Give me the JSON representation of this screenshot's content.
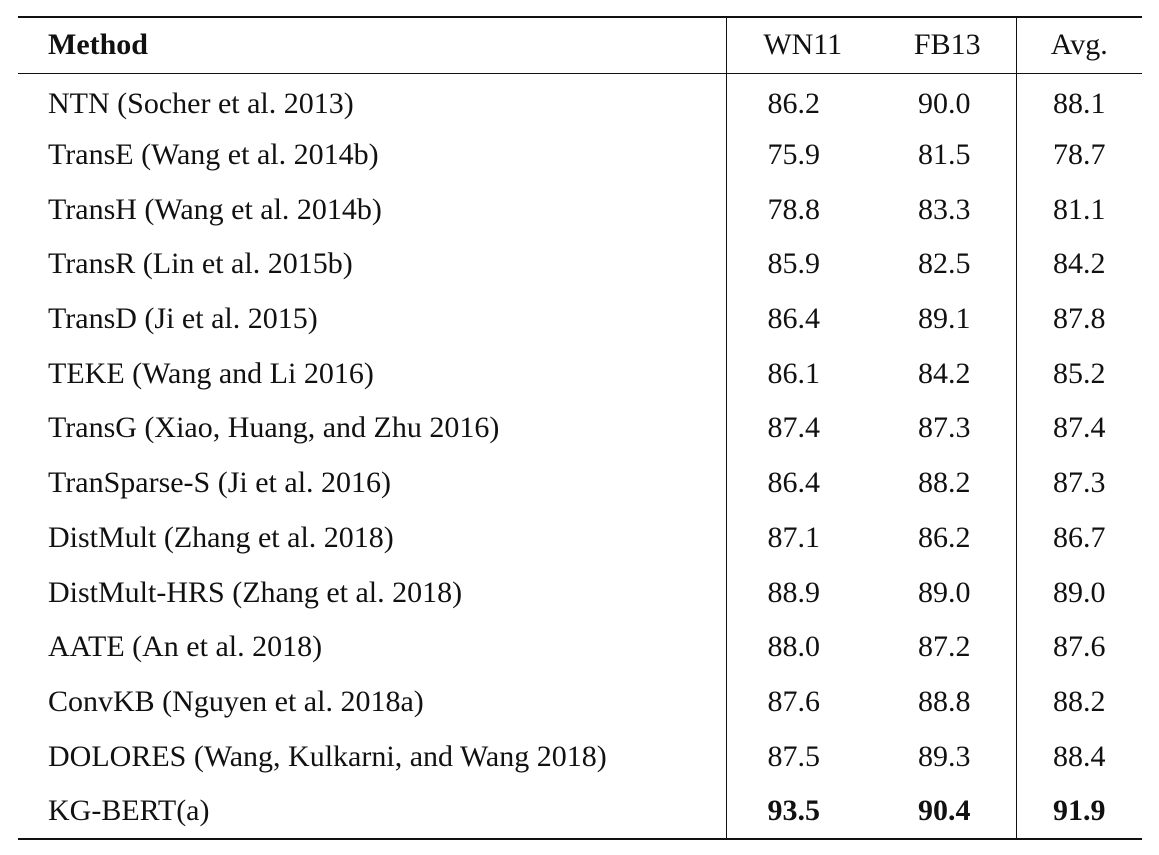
{
  "table": {
    "headers": {
      "method": "Method",
      "wn11": "WN11",
      "fb13": "FB13",
      "avg": "Avg."
    },
    "rows": [
      {
        "method": "NTN (Socher et al. 2013)",
        "wn11": "86.2",
        "fb13": "90.0",
        "avg": "88.1"
      },
      {
        "method": "TransE (Wang et al. 2014b)",
        "wn11": "75.9",
        "fb13": "81.5",
        "avg": "78.7"
      },
      {
        "method": "TransH (Wang et al. 2014b)",
        "wn11": "78.8",
        "fb13": "83.3",
        "avg": "81.1"
      },
      {
        "method": "TransR (Lin et al. 2015b)",
        "wn11": "85.9",
        "fb13": "82.5",
        "avg": "84.2"
      },
      {
        "method": "TransD (Ji et al. 2015)",
        "wn11": "86.4",
        "fb13": "89.1",
        "avg": "87.8"
      },
      {
        "method": "TEKE (Wang and Li 2016)",
        "wn11": "86.1",
        "fb13": "84.2",
        "avg": "85.2"
      },
      {
        "method": "TransG (Xiao, Huang, and Zhu 2016)",
        "wn11": "87.4",
        "fb13": "87.3",
        "avg": "87.4"
      },
      {
        "method": "TranSparse-S (Ji et al. 2016)",
        "wn11": "86.4",
        "fb13": "88.2",
        "avg": "87.3"
      },
      {
        "method": "DistMult (Zhang et al. 2018)",
        "wn11": "87.1",
        "fb13": "86.2",
        "avg": "86.7"
      },
      {
        "method": "DistMult-HRS (Zhang et al. 2018)",
        "wn11": "88.9",
        "fb13": "89.0",
        "avg": "89.0"
      },
      {
        "method": "AATE (An et al. 2018)",
        "wn11": "88.0",
        "fb13": "87.2",
        "avg": "87.6"
      },
      {
        "method": "ConvKB (Nguyen et al. 2018a)",
        "wn11": "87.6",
        "fb13": "88.8",
        "avg": "88.2"
      },
      {
        "method": "DOLORES (Wang, Kulkarni, and Wang 2018)",
        "wn11": "87.5",
        "fb13": "89.3",
        "avg": "88.4"
      },
      {
        "method": "KG-BERT(a)",
        "wn11": "93.5",
        "fb13": "90.4",
        "avg": "91.9",
        "best": true
      }
    ]
  }
}
